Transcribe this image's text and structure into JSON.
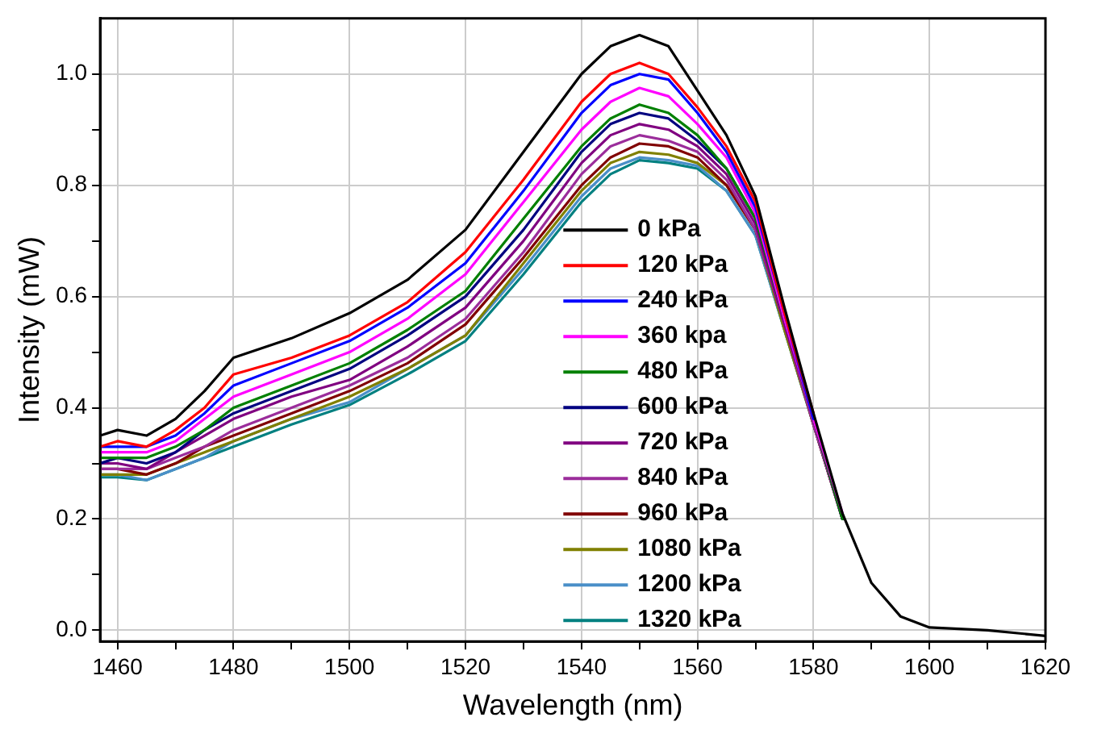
{
  "chart_data": {
    "type": "line",
    "xlabel": "Wavelength (nm)",
    "ylabel": "Intensity (mW)",
    "x": [
      1457,
      1460,
      1465,
      1470,
      1475,
      1480,
      1490,
      1500,
      1510,
      1520,
      1530,
      1540,
      1545,
      1550,
      1555,
      1560,
      1565,
      1570,
      1575,
      1580,
      1585,
      1590,
      1595,
      1600,
      1610,
      1620
    ],
    "series": [
      {
        "name": "0 kPa",
        "color": "#000000",
        "values": [
          0.35,
          0.36,
          0.35,
          0.38,
          0.43,
          0.49,
          0.525,
          0.57,
          0.63,
          0.72,
          0.86,
          1.0,
          1.05,
          1.07,
          1.05,
          0.97,
          0.89,
          0.78,
          0.58,
          0.39,
          0.21,
          0.085,
          0.025,
          0.005,
          0,
          -0.01
        ]
      },
      {
        "name": "120 kPa",
        "color": "#ff0000",
        "values": [
          0.33,
          0.34,
          0.33,
          0.36,
          0.4,
          0.46,
          0.49,
          0.53,
          0.59,
          0.68,
          0.81,
          0.95,
          1.0,
          1.02,
          1.0,
          0.94,
          0.87,
          0.77,
          0.57,
          0.39,
          null,
          null,
          null,
          null,
          null,
          null
        ]
      },
      {
        "name": "240 kPa",
        "color": "#0000ff",
        "values": [
          0.33,
          0.33,
          0.33,
          0.35,
          0.39,
          0.44,
          0.48,
          0.52,
          0.58,
          0.66,
          0.79,
          0.93,
          0.98,
          1.0,
          0.99,
          0.93,
          0.86,
          0.76,
          0.57,
          0.38,
          null,
          null,
          null,
          null,
          null,
          null
        ]
      },
      {
        "name": "360 kpa",
        "color": "#ff00ff",
        "values": [
          0.32,
          0.32,
          0.32,
          0.34,
          0.38,
          0.42,
          0.46,
          0.5,
          0.56,
          0.64,
          0.77,
          0.9,
          0.95,
          0.975,
          0.96,
          0.91,
          0.85,
          0.75,
          0.56,
          0.38,
          0.21,
          null,
          null,
          null,
          null,
          null
        ]
      },
      {
        "name": "480 kPa",
        "color": "#008000",
        "values": [
          0.31,
          0.31,
          0.31,
          0.33,
          0.36,
          0.4,
          0.44,
          0.48,
          0.54,
          0.61,
          0.74,
          0.87,
          0.92,
          0.945,
          0.93,
          0.89,
          0.83,
          0.74,
          0.56,
          0.38,
          0.2,
          null,
          null,
          null,
          null,
          null
        ]
      },
      {
        "name": "600 kPa",
        "color": "#000080",
        "values": [
          0.3,
          0.31,
          0.3,
          0.32,
          0.36,
          0.39,
          0.43,
          0.47,
          0.53,
          0.6,
          0.72,
          0.86,
          0.91,
          0.93,
          0.92,
          0.88,
          0.83,
          0.74,
          0.56,
          0.38,
          0.2,
          null,
          null,
          null,
          null,
          null
        ]
      },
      {
        "name": "720 kPa",
        "color": "#800080",
        "values": [
          0.3,
          0.3,
          0.29,
          0.32,
          0.35,
          0.38,
          0.42,
          0.45,
          0.51,
          0.58,
          0.7,
          0.84,
          0.89,
          0.91,
          0.9,
          0.87,
          0.82,
          0.73,
          0.55,
          0.38,
          0.2,
          null,
          null,
          null,
          null,
          null
        ]
      },
      {
        "name": "840 kPa",
        "color": "#9b2d9b",
        "values": [
          0.29,
          0.29,
          0.29,
          0.31,
          0.33,
          0.36,
          0.4,
          0.44,
          0.49,
          0.56,
          0.68,
          0.82,
          0.87,
          0.89,
          0.88,
          0.86,
          0.81,
          0.72,
          0.55,
          0.37,
          0.2,
          null,
          null,
          null,
          null,
          null
        ]
      },
      {
        "name": "960 kPa",
        "color": "#800000",
        "values": [
          0.29,
          0.29,
          0.28,
          0.3,
          0.33,
          0.35,
          0.39,
          0.43,
          0.48,
          0.55,
          0.67,
          0.8,
          0.85,
          0.875,
          0.87,
          0.85,
          0.8,
          0.72,
          0.55,
          0.37,
          0.2,
          null,
          null,
          null,
          null,
          null
        ]
      },
      {
        "name": "1080 kPa",
        "color": "#808000",
        "values": [
          0.28,
          0.28,
          0.28,
          0.3,
          0.32,
          0.34,
          0.38,
          0.42,
          0.47,
          0.53,
          0.66,
          0.79,
          0.84,
          0.86,
          0.855,
          0.84,
          0.8,
          0.72,
          0.54,
          0.37,
          0.2,
          null,
          null,
          null,
          null,
          null
        ]
      },
      {
        "name": "1200 kPa",
        "color": "#4a8fc8",
        "values": [
          0.28,
          0.28,
          0.27,
          0.29,
          0.31,
          0.34,
          0.38,
          0.41,
          0.47,
          0.53,
          0.65,
          0.78,
          0.83,
          0.85,
          0.845,
          0.835,
          0.79,
          0.71,
          0.54,
          0.37,
          0.2,
          null,
          null,
          null,
          null,
          null
        ]
      },
      {
        "name": "1320 kPa",
        "color": "#008080",
        "values": [
          0.275,
          0.275,
          0.27,
          0.29,
          0.31,
          0.33,
          0.37,
          0.405,
          0.46,
          0.52,
          0.64,
          0.77,
          0.82,
          0.845,
          0.84,
          0.83,
          0.79,
          0.71,
          0.54,
          0.37,
          0.2,
          null,
          null,
          null,
          null,
          null
        ]
      }
    ],
    "xlim": [
      1457,
      1620
    ],
    "xticks": [
      1460,
      {
        "value": 1470,
        "label": null
      },
      1480,
      {
        "value": 1490,
        "label": null
      },
      1500,
      {
        "value": 1510,
        "label": null
      },
      1520,
      {
        "value": 1530,
        "label": null
      },
      1540,
      {
        "value": 1550,
        "label": null
      },
      1560,
      {
        "value": 1570,
        "label": null
      },
      1580,
      {
        "value": 1590,
        "label": null
      },
      1600,
      {
        "value": 1610,
        "label": null
      },
      1620
    ],
    "ylim": [
      -0.02,
      1.1
    ],
    "yticks": [
      {
        "value": 0,
        "label": "0.0"
      },
      {
        "value": 0.1,
        "label": null
      },
      {
        "value": 0.2,
        "label": "0.2"
      },
      {
        "value": 0.3,
        "label": null
      },
      {
        "value": 0.4,
        "label": "0.4"
      },
      {
        "value": 0.5,
        "label": null
      },
      {
        "value": 0.6,
        "label": "0.6"
      },
      {
        "value": 0.7,
        "label": null
      },
      {
        "value": 0.8,
        "label": "0.8"
      },
      {
        "value": 0.9,
        "label": null
      },
      {
        "value": 1.0,
        "label": "1.0"
      }
    ],
    "grid": true,
    "legend": "bottom right"
  }
}
